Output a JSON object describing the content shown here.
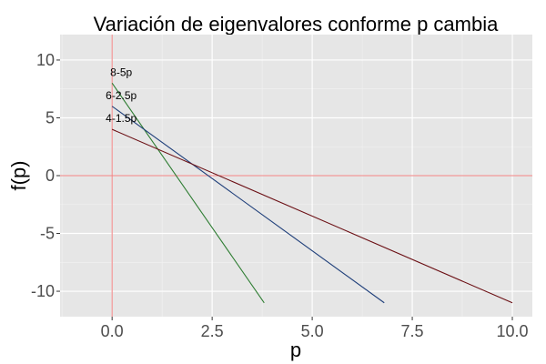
{
  "chart_data": {
    "type": "line",
    "title": "Variación de eigenvalores conforme p cambia",
    "xlabel": "p",
    "ylabel": "f(p)",
    "xlim": [
      -1.3,
      10.5
    ],
    "ylim": [
      -12.2,
      12.2
    ],
    "x_ticks": [
      0.0,
      2.5,
      5.0,
      7.5,
      10.0
    ],
    "x_tick_labels": [
      "0.0",
      "2.5",
      "5.0",
      "7.5",
      "10.0"
    ],
    "y_ticks": [
      10,
      5,
      0,
      -5,
      -10
    ],
    "y_tick_labels": [
      "10",
      "5",
      "0",
      "-5",
      "-10"
    ],
    "grid": true,
    "reference_lines": {
      "x": 0,
      "y": 0,
      "color": "#f08080"
    },
    "series": [
      {
        "name": "8-5p",
        "color": "#2e7d32",
        "x": [
          0,
          3.8
        ],
        "y": [
          8,
          -11
        ]
      },
      {
        "name": "6-2.5p",
        "color": "#1f3f7a",
        "x": [
          0,
          6.8
        ],
        "y": [
          6,
          -11
        ]
      },
      {
        "name": "4-1.5p",
        "color": "#6b0f14",
        "x": [
          0,
          10.0
        ],
        "y": [
          4,
          -11
        ]
      }
    ]
  }
}
